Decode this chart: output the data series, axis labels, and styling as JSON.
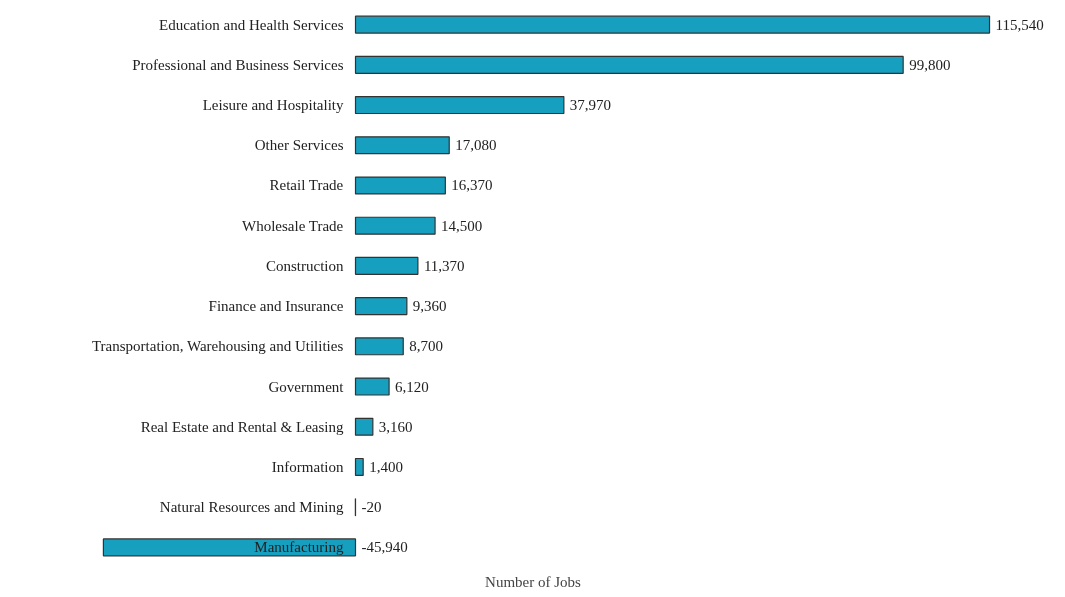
{
  "chart_data": {
    "type": "bar",
    "orientation": "horizontal",
    "xlabel": "Number of Jobs",
    "categories": [
      "Education and Health Services",
      "Professional and Business Services",
      "Leisure and Hospitality",
      "Other Services",
      "Retail Trade",
      "Wholesale Trade",
      "Construction",
      "Finance and Insurance",
      "Transportation, Warehousing and Utilities",
      "Government",
      "Real Estate and Rental & Leasing",
      "Information",
      "Natural Resources and Mining",
      "Manufacturing"
    ],
    "values": [
      115540,
      99800,
      37970,
      17080,
      16370,
      14500,
      11370,
      9360,
      8700,
      6120,
      3160,
      1400,
      -20,
      -45940
    ],
    "value_labels": [
      "115,540",
      "99,800",
      "37,970",
      "17,080",
      "16,370",
      "14,500",
      "11,370",
      "9,360",
      "8,700",
      "6,120",
      "3,160",
      "1,400",
      "-20",
      "-45,940"
    ],
    "color": "#169fbf"
  }
}
